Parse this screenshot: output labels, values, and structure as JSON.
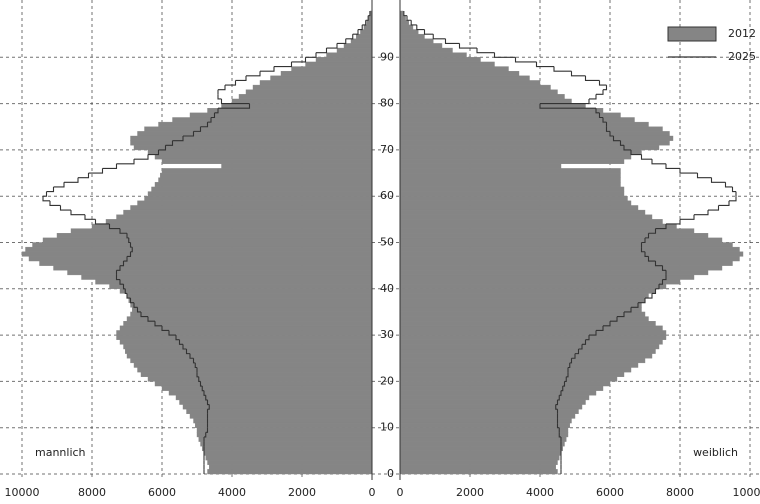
{
  "chart_data": {
    "type": "pyramid",
    "bins": [
      0,
      1,
      2,
      3,
      4,
      5,
      6,
      7,
      8,
      9,
      10,
      11,
      12,
      13,
      14,
      15,
      16,
      17,
      18,
      19,
      20,
      21,
      22,
      23,
      24,
      25,
      26,
      27,
      28,
      29,
      30,
      31,
      32,
      33,
      34,
      35,
      36,
      37,
      38,
      39,
      40,
      41,
      42,
      43,
      44,
      45,
      46,
      47,
      48,
      49,
      50,
      51,
      52,
      53,
      54,
      55,
      56,
      57,
      58,
      59,
      60,
      61,
      62,
      63,
      64,
      65,
      66,
      67,
      68,
      69,
      70,
      71,
      72,
      73,
      74,
      75,
      76,
      77,
      78,
      79,
      80,
      81,
      82,
      83,
      84,
      85,
      86,
      87,
      88,
      89,
      90,
      91,
      92,
      93,
      94,
      95,
      96,
      97,
      98,
      99,
      100
    ],
    "ylim": [
      0,
      100
    ],
    "yticks": [
      0,
      10,
      20,
      30,
      40,
      50,
      60,
      70,
      80,
      90
    ],
    "grid": true,
    "legend": "top-right",
    "panels": [
      {
        "label": "mannlich",
        "xlim": [
          10000,
          0
        ],
        "xticks": [
          10000,
          8000,
          6000,
          4000,
          2000,
          0
        ]
      },
      {
        "label": "weiblich",
        "xlim": [
          0,
          10000
        ],
        "xticks": [
          0,
          2000,
          4000,
          6000,
          8000,
          10000
        ]
      }
    ],
    "series": [
      {
        "name": "2012",
        "color": "#858585",
        "values": [
          [
            4700,
            4650,
            4700,
            4750,
            4800,
            4850,
            4900,
            4950,
            5000,
            5000,
            5050,
            5100,
            5200,
            5300,
            5400,
            5500,
            5600,
            5800,
            6000,
            6200,
            6400,
            6600,
            6700,
            6800,
            6900,
            7000,
            7050,
            7100,
            7200,
            7300,
            7300,
            7200,
            7100,
            7000,
            6900,
            6850,
            6900,
            6950,
            7000,
            7200,
            7500,
            7900,
            8300,
            8700,
            9100,
            9500,
            9800,
            10000,
            9900,
            9700,
            9400,
            9000,
            8600,
            8000,
            7600,
            7300,
            7100,
            6900,
            6700,
            6500,
            6400,
            6300,
            6200,
            6100,
            6050,
            6000,
            4300,
            6000,
            6200,
            6400,
            6800,
            6900,
            6900,
            6700,
            6500,
            6100,
            5700,
            5200,
            4700,
            4300,
            4000,
            3800,
            3600,
            3400,
            3200,
            2900,
            2600,
            2300,
            1900,
            1600,
            1300,
            1000,
            800,
            600,
            450,
            330,
            230,
            150,
            90,
            50
          ],
          [
            4500,
            4450,
            4500,
            4550,
            4600,
            4650,
            4700,
            4750,
            4800,
            4800,
            4850,
            4900,
            5000,
            5100,
            5200,
            5300,
            5400,
            5600,
            5800,
            6000,
            6200,
            6400,
            6600,
            6800,
            7000,
            7200,
            7300,
            7400,
            7500,
            7600,
            7600,
            7500,
            7300,
            7100,
            7000,
            6900,
            6900,
            7000,
            7100,
            7300,
            7600,
            8000,
            8400,
            8800,
            9200,
            9500,
            9700,
            9800,
            9700,
            9500,
            9200,
            8800,
            8400,
            7900,
            7500,
            7200,
            7000,
            6800,
            6600,
            6500,
            6400,
            6400,
            6300,
            6300,
            6300,
            6300,
            4600,
            6400,
            6600,
            6900,
            7400,
            7700,
            7800,
            7700,
            7500,
            7100,
            6700,
            6300,
            5800,
            5300,
            4900,
            4700,
            4500,
            4300,
            4000,
            3700,
            3400,
            3100,
            2700,
            2300,
            1900,
            1500,
            1200,
            950,
            700,
            520,
            370,
            250,
            160,
            90
          ]
        ]
      },
      {
        "name": "2025",
        "color": "#333333",
        "values": [
          [
            4800,
            4800,
            4800,
            4800,
            4800,
            4800,
            4800,
            4800,
            4750,
            4700,
            4700,
            4700,
            4700,
            4700,
            4650,
            4700,
            4750,
            4800,
            4850,
            4900,
            4950,
            5000,
            5000,
            5050,
            5100,
            5200,
            5300,
            5400,
            5500,
            5600,
            5800,
            6000,
            6200,
            6400,
            6600,
            6700,
            6800,
            6900,
            7000,
            7050,
            7100,
            7200,
            7300,
            7300,
            7200,
            7100,
            7000,
            6900,
            6850,
            6900,
            6950,
            7000,
            7200,
            7500,
            7900,
            8200,
            8600,
            8900,
            9200,
            9400,
            9300,
            9100,
            8800,
            8400,
            8100,
            7700,
            7300,
            6800,
            6400,
            6100,
            5900,
            5700,
            5400,
            5100,
            4900,
            4700,
            4600,
            4500,
            4400,
            3500,
            4300,
            4400,
            4400,
            4200,
            3900,
            3600,
            3200,
            2800,
            2300,
            1900,
            1600,
            1300,
            1000,
            750,
            550,
            400,
            280,
            180,
            110,
            60
          ],
          [
            4600,
            4600,
            4600,
            4600,
            4600,
            4600,
            4600,
            4600,
            4550,
            4550,
            4500,
            4500,
            4500,
            4500,
            4450,
            4500,
            4550,
            4600,
            4650,
            4700,
            4750,
            4800,
            4800,
            4850,
            4900,
            5000,
            5100,
            5200,
            5300,
            5400,
            5600,
            5800,
            6000,
            6200,
            6400,
            6600,
            6800,
            7000,
            7200,
            7300,
            7400,
            7500,
            7600,
            7600,
            7500,
            7300,
            7100,
            7000,
            6900,
            6900,
            7000,
            7100,
            7300,
            7600,
            8000,
            8400,
            8800,
            9100,
            9400,
            9600,
            9600,
            9500,
            9300,
            8900,
            8500,
            8000,
            7600,
            7200,
            6900,
            6600,
            6400,
            6300,
            6100,
            6000,
            5900,
            5900,
            5800,
            5700,
            5600,
            4000,
            5400,
            5600,
            5800,
            5900,
            5700,
            5300,
            4900,
            4400,
            3900,
            3300,
            2700,
            2200,
            1700,
            1300,
            950,
            700,
            480,
            320,
            200,
            110
          ]
        ]
      }
    ]
  }
}
